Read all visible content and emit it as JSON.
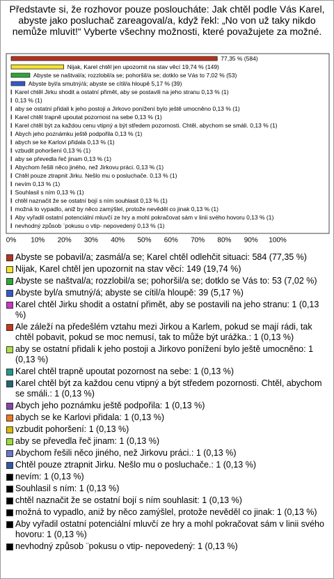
{
  "chart_data": {
    "type": "bar",
    "title": "Představte si, že rozhovor pouze posloucháte: Jak chtěl podle Vás Karel, abyste jako posluchač zareagoval/a, když řekl: „No von už taky nikdo nemůže mluvit!“ Vyberte všechny možnosti, které považujete za možné.",
    "categories": [
      "Abyste se pobavil/a; zasmál/a se; Karel chtěl odlehčit situaci: 584 (77,35 %)",
      "Nijak, Karel chtěl jen upozornit na stav věcí: 149 (19,74 %)",
      "Abyste se naštval/a; rozzlobil/a se; pohoršil/a se; dotklo se Vás to: 53 (7,02 %)",
      "Abyste byl/a smutný/á; abyste se cítil/a hloupě: 39 (5,17 %)",
      "Karel chtěl Jirku shodit a ostatní přimět, aby se postavili na jeho stranu: 1 (0,13 %)",
      "Ale záleží na předešlém vztahu mezi Jirkou a Karlem, pokud se mají rádi, tak chtěl pobavit, pokud se moc nemusí, tak to může být urážka.: 1 (0,13 %)",
      "aby se ostatní přidali k jeho postoji a Jirkovo ponížení bylo ještě umocněno: 1 (0,13 %)",
      "Karel chtěl trapně upoutat pozornost na sebe: 1 (0,13 %)",
      "Karel chtěl být za každou cenu vtipný a být středem pozornosti. Chtěl, abychom se smáli.: 1 (0,13 %)",
      "Abych jeho poznámku ještě podpořila: 1 (0,13 %)",
      "abych se ke Karlovi přidala: 1 (0,13 %)",
      "vzbudit pohoršení: 1 (0,13 %)",
      "aby se převedla řeč jinam: 1 (0,13 %)",
      "Abychom řešili něco jiného, než Jirkovu práci.: 1 (0,13 %)",
      "Chtěl pouze ztrapnit Jirku. Nešlo mu o posluchače.: 1 (0,13 %)",
      "nevím: 1 (0,13 %)",
      "Souhlasil s ním: 1 (0,13 %)",
      "chtěl naznačit že se ostatní bojí s ním souhlasit: 1 (0,13 %)",
      "možná to vypadlo, aniž by něco zamýšlel, protože nevěděl co jinak: 1 (0,13 %)",
      "Aby vyřadil ostatní potenciální mluvčí ze hry a mohl pokračovat sám v linii svého hovoru: 1 (0,13 %)",
      "nevhodný způsob ¨pokusu o vtip- nepovedený: 1 (0,13 %)"
    ],
    "values": [
      77.35,
      19.74,
      7.02,
      5.17,
      0.13,
      0.13,
      0.13,
      0.13,
      0.13,
      0.13,
      0.13,
      0.13,
      0.13,
      0.13,
      0.13,
      0.13,
      0.13,
      0.13,
      0.13,
      0.13,
      0.13
    ],
    "value_labels": [
      "77,35 % (584)",
      "Nijak, Karel chtěl jen upozornit na stav věcí 19,74 % (149)",
      "Abyste se naštval/a; rozzlobil/a se; pohoršil/a se; dotklo se Vás to 7,02 % (53)",
      "Abyste byl/a smutný/á; abyste se cítil/a hloupě 5,17 % (39)",
      "Karel chtěl Jirku shodit a ostatní přimět, aby se postavili na jeho stranu 0,13 % (1)",
      "0,13 % (1)",
      "aby se ostatní přidali k jeho postoji a Jirkovo ponížení bylo ještě umocněno 0,13 % (1)",
      "Karel chtěl trapně upoutat pozornost na sebe 0,13 % (1)",
      "Karel chtěl být za každou cenu vtipný a být středem pozornosti. Chtěl, abychom se smáli. 0,13 % (1)",
      "Abych jeho poznámku ještě podpořila 0,13 % (1)",
      "abych se ke Karlovi přidala 0,13 % (1)",
      "vzbudit pohoršení 0,13 % (1)",
      "aby se převedla řeč jinam 0,13 % (1)",
      "Abychom řešili něco jiného, než Jirkovu práci. 0,13 % (1)",
      "Chtěl pouze ztrapnit Jirku. Nešlo mu o posluchače. 0,13 % (1)",
      "nevím 0,13 % (1)",
      "Souhlasil s ním 0,13 % (1)",
      "chtěl naznačit že se ostatní bojí s ním souhlasit 0,13 % (1)",
      "možná to vypadlo, aniž by něco zamýšlel, protože nevěděl co jinak 0,13 % (1)",
      "Aby vyřadil ostatní potenciální mluvčí ze hry a mohl pokračovat sám v linii svého hovoru 0,13 % (1)",
      "nevhodný způsob ¨pokusu o vtip- nepovedený 0,13 % (1)"
    ],
    "colors": [
      "#b8321e",
      "#f2e32c",
      "#2ea836",
      "#3559cc",
      "#c837c8",
      "#c8361a",
      "#b0dd48",
      "#22998a",
      "#226677",
      "#8844aa",
      "#ee7722",
      "#ddb800",
      "#99dd33",
      "#6677cc",
      "#3355aa",
      "#000000",
      "#000000",
      "#000000",
      "#000000",
      "#000000",
      "#000000"
    ],
    "xlim": [
      0,
      100
    ],
    "xticks": [
      {
        "value": 0,
        "label": "0%"
      },
      {
        "value": 10,
        "label": "10%"
      },
      {
        "value": 20,
        "label": "20%"
      },
      {
        "value": 30,
        "label": "30%"
      },
      {
        "value": 40,
        "label": "40%"
      },
      {
        "value": 50,
        "label": "50%"
      },
      {
        "value": 60,
        "label": "60%"
      },
      {
        "value": 70,
        "label": "70%"
      },
      {
        "value": 80,
        "label": "80%"
      },
      {
        "value": 90,
        "label": "90%"
      },
      {
        "value": 100,
        "label": "100%"
      }
    ]
  }
}
